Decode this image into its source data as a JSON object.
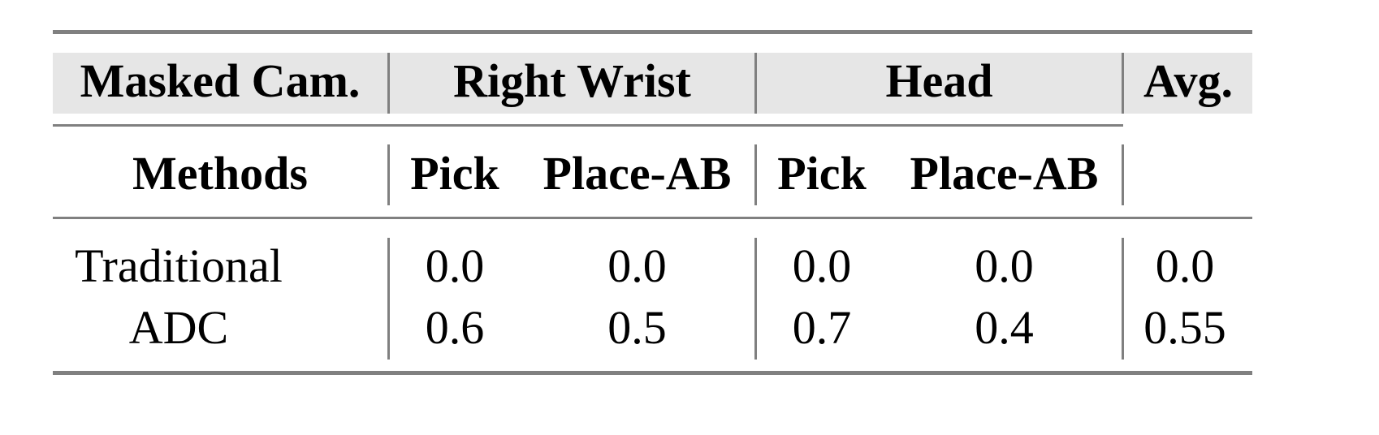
{
  "header_row1": {
    "masked_cam": "Masked Cam.",
    "groups": [
      "Right Wrist",
      "Head"
    ],
    "avg": "Avg."
  },
  "header_row2": {
    "methods": "Methods",
    "subcols": [
      "Pick",
      "Place-AB",
      "Pick",
      "Place-AB"
    ]
  },
  "rows": [
    {
      "method": "Traditional",
      "values": [
        "0.0",
        "0.0",
        "0.0",
        "0.0",
        "0.0"
      ]
    },
    {
      "method": "ADC",
      "values": [
        "0.6",
        "0.5",
        "0.7",
        "0.4",
        "0.55"
      ]
    }
  ],
  "colors": {
    "header_band": "#e6e6e6",
    "rules": "#808080"
  }
}
